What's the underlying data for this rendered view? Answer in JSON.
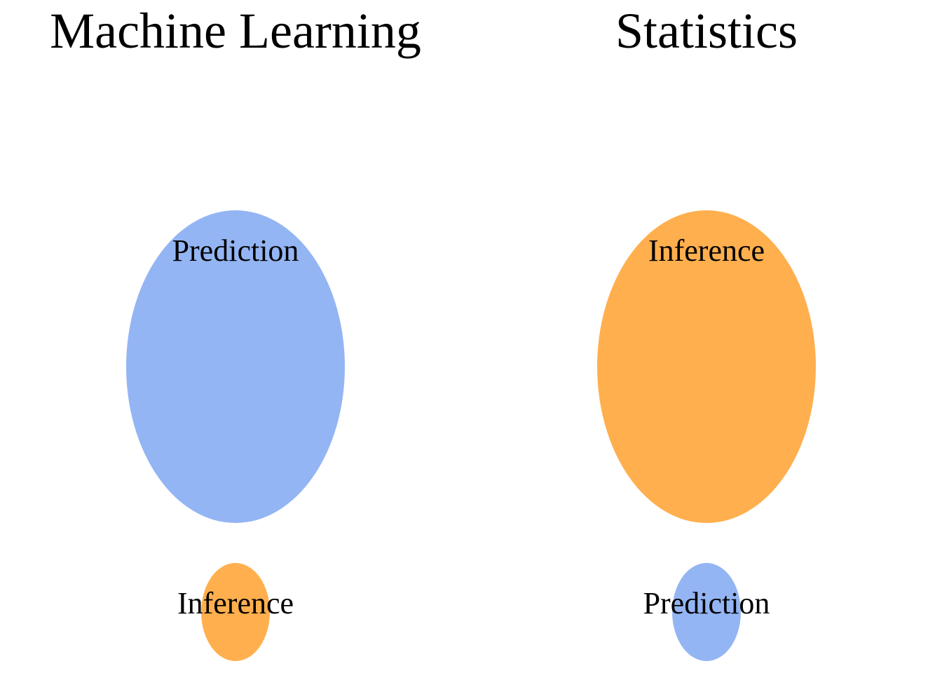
{
  "colors": {
    "prediction": "#94b5f3",
    "inference": "#ffaf4d",
    "background": "#ffffff",
    "text": "#000000"
  },
  "panels": [
    {
      "title": "Machine Learning",
      "large": {
        "label": "Prediction",
        "concept": "prediction"
      },
      "small": {
        "label": "Inference",
        "concept": "inference"
      }
    },
    {
      "title": "Statistics",
      "large": {
        "label": "Inference",
        "concept": "inference"
      },
      "small": {
        "label": "Prediction",
        "concept": "prediction"
      }
    }
  ]
}
